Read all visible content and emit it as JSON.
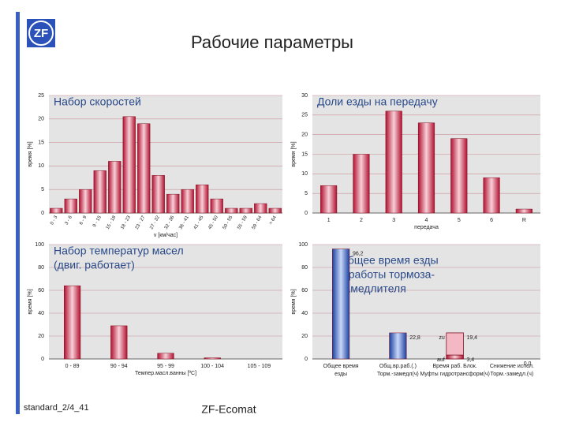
{
  "slide": {
    "logo": "ZF",
    "title": "Рабочие параметры",
    "footer_left": "standard_2/4_41",
    "footer_center": "ZF-Ecomat"
  },
  "chart_data": [
    {
      "type": "bar",
      "title": [
        "Набор скоростей"
      ],
      "x_label": "v [км/час]",
      "y_label": "время [%]",
      "categories": [
        "0 - 3",
        "3 - 6",
        "6 - 9",
        "9 - 15",
        "15 - 18",
        "18 - 23",
        "23 - 27",
        "27 - 32",
        "32 - 36",
        "36 - 41",
        "41 - 45",
        "45 - 50",
        "50 - 55",
        "55 - 59",
        "59 - 64",
        "> 64"
      ],
      "values": [
        1,
        3,
        5,
        9,
        11,
        20.5,
        19,
        8,
        4,
        5,
        6,
        3,
        1,
        1,
        2,
        1
      ],
      "color": "#c8163c",
      "ylim": [
        0,
        25
      ],
      "yticks": [
        0,
        5,
        10,
        15,
        20,
        25
      ],
      "grid": true
    },
    {
      "type": "bar",
      "title": [
        "Доли езды на передачу"
      ],
      "x_label": "передача",
      "y_label": "время [%]",
      "categories": [
        "1",
        "2",
        "3",
        "4",
        "5",
        "6",
        "R"
      ],
      "values": [
        7,
        15,
        26,
        23,
        19,
        9,
        1
      ],
      "color": "#c8163c",
      "ylim": [
        0,
        30
      ],
      "yticks": [
        0,
        5,
        10,
        15,
        20,
        25,
        30
      ],
      "grid": true
    },
    {
      "type": "bar",
      "title": [
        "Набор температур масел",
        "(двиг. работает)"
      ],
      "x_label": "Темпер.масл.ванны [ºC]",
      "y_label": "время [%]",
      "categories": [
        "0 - 89",
        "90 - 94",
        "95 - 99",
        "100 - 104",
        "105 - 109"
      ],
      "values": [
        64,
        29,
        5,
        1,
        0
      ],
      "color": "#c8163c",
      "ylim": [
        0,
        100
      ],
      "yticks": [
        0,
        20,
        40,
        60,
        80,
        100
      ],
      "grid": true
    },
    {
      "type": "bar",
      "title": [
        "Общее время езды",
        "и работы тормоза-",
        "замедлителя"
      ],
      "y_label": "время [%]",
      "categories": [
        [
          "Общее время",
          "езды"
        ],
        [
          "Общ.вр.раб.(.)",
          "Торм.-замедл(ч)"
        ],
        [
          "Время раб. Блок.",
          "Муфты гидротрансформ(ч)"
        ],
        [
          "Снижение испол.",
          "Торм.-замедл.(ч)"
        ]
      ],
      "values": [
        96.2,
        22.8,
        null,
        0.0
      ],
      "value_labels": [
        "96,2",
        "22,8",
        null,
        "0,0"
      ],
      "color": "#2050b8",
      "series": [
        {
          "name": "auf",
          "color": "#c8163c",
          "values": [
            null,
            null,
            3.4,
            null
          ],
          "value_labels": [
            null,
            null,
            "3,4",
            null
          ]
        },
        {
          "name": "zu",
          "color": "#f4b8c4",
          "values": [
            null,
            null,
            19.4,
            null
          ],
          "value_labels": [
            null,
            null,
            "19,4",
            null
          ]
        }
      ],
      "ylim": [
        0,
        100
      ],
      "yticks": [
        0,
        20,
        40,
        60,
        80,
        100
      ],
      "grid": true
    }
  ]
}
